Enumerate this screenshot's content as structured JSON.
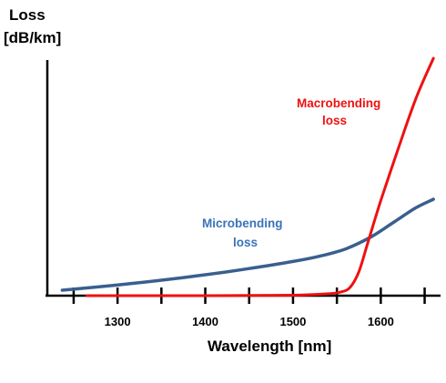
{
  "chart_data": {
    "type": "line",
    "ylabel_line1": "Loss",
    "ylabel_line2": "[dB/km]",
    "xlabel": "Wavelength [nm]",
    "xlim": [
      1220,
      1665
    ],
    "ylim": [
      0,
      100
    ],
    "x_ticks": [
      1250,
      1300,
      1350,
      1400,
      1450,
      1500,
      1550,
      1600,
      1650
    ],
    "x_tick_labels": [
      {
        "value": 1300,
        "label": "1300"
      },
      {
        "value": 1400,
        "label": "1400"
      },
      {
        "value": 1500,
        "label": "1500"
      },
      {
        "value": 1600,
        "label": "1600"
      }
    ],
    "series": [
      {
        "name": "Microbending loss",
        "label_line1": "Microbending",
        "label_line2": "loss",
        "color": "#3a5f8f",
        "label_color": "#3a73b8",
        "x": [
          1237,
          1300,
          1350,
          1400,
          1450,
          1500,
          1530,
          1560,
          1590,
          1615,
          1640,
          1660
        ],
        "y": [
          2.3,
          4.5,
          6.5,
          8.8,
          11.4,
          14.4,
          16.6,
          19.7,
          25.0,
          31.0,
          37.0,
          40.6
        ]
      },
      {
        "name": "Macrobending loss",
        "label_line1": "Macrobending",
        "label_line2": "loss",
        "color": "#ee1111",
        "label_color": "#ee1111",
        "x": [
          1265,
          1400,
          1500,
          1540,
          1555,
          1565,
          1575,
          1585,
          1600,
          1620,
          1640,
          1660
        ],
        "y": [
          0,
          0,
          0.2,
          0.8,
          1.6,
          3.5,
          10,
          22,
          40,
          62,
          83,
          100
        ]
      }
    ]
  }
}
